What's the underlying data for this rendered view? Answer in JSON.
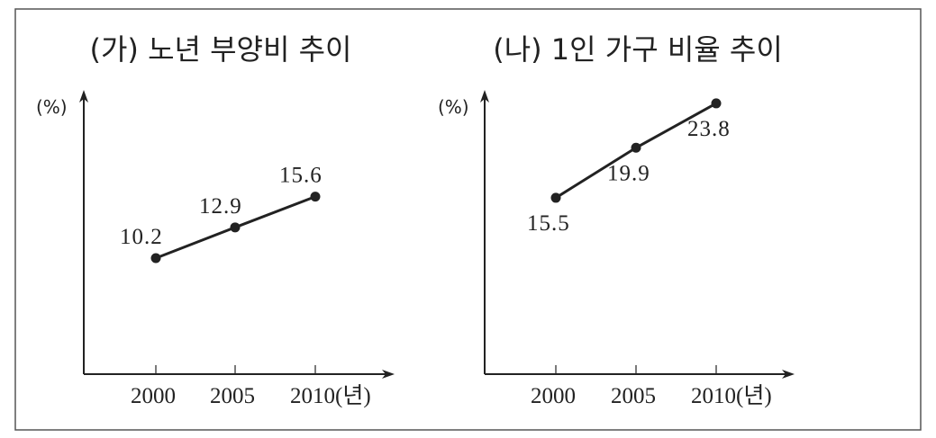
{
  "chart_data": [
    {
      "type": "line",
      "title": "(가) 노년 부양비 추이",
      "ylabel": "(%)",
      "xlabel": "(년)",
      "categories": [
        "2000",
        "2005",
        "2010"
      ],
      "tick_labels": [
        "2000",
        "2005",
        "2010(년)"
      ],
      "values": [
        10.2,
        12.9,
        15.6
      ],
      "value_labels": [
        "10.2",
        "12.9",
        "15.6"
      ],
      "label_position": "above",
      "ylim": [
        0,
        24
      ],
      "grid": false
    },
    {
      "type": "line",
      "title": "(나) 1인 가구 비율 추이",
      "ylabel": "(%)",
      "xlabel": "(년)",
      "categories": [
        "2000",
        "2005",
        "2010"
      ],
      "tick_labels": [
        "2000",
        "2005",
        "2010(년)"
      ],
      "values": [
        15.5,
        19.9,
        23.8
      ],
      "value_labels": [
        "15.5",
        "19.9",
        "23.8"
      ],
      "label_position": "below",
      "ylim": [
        0,
        24
      ],
      "grid": false
    }
  ]
}
